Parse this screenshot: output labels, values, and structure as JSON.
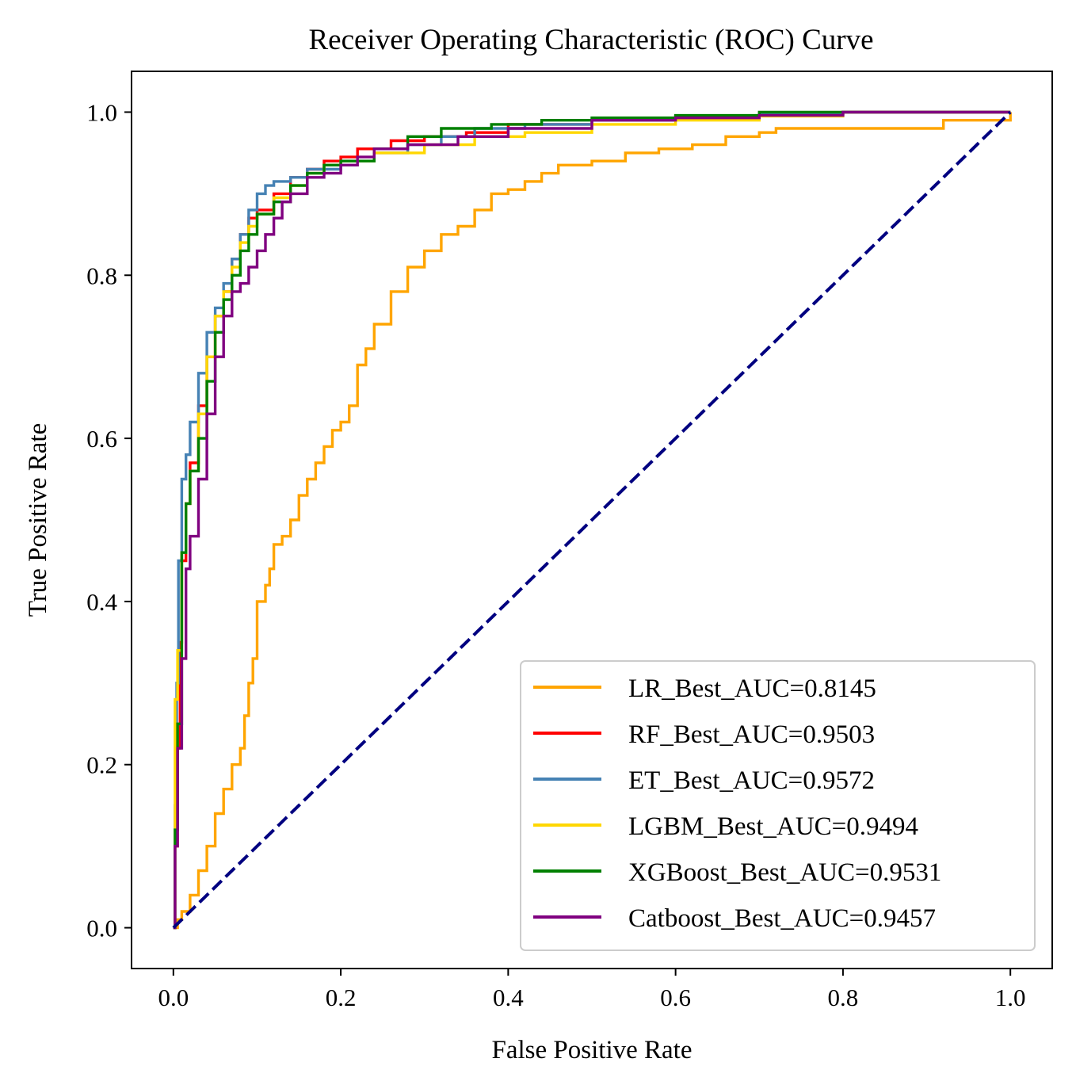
{
  "chart_data": {
    "type": "line",
    "title": "Receiver Operating Characteristic (ROC) Curve",
    "xlabel": "False Positive Rate",
    "ylabel": "True Positive Rate",
    "xlim": [
      -0.05,
      1.05
    ],
    "ylim": [
      -0.05,
      1.05
    ],
    "xticks": [
      0.0,
      0.2,
      0.4,
      0.6,
      0.8,
      1.0
    ],
    "yticks": [
      0.0,
      0.2,
      0.4,
      0.6,
      0.8,
      1.0
    ],
    "tick_labels_x": [
      "0.0",
      "0.2",
      "0.4",
      "0.6",
      "0.8",
      "1.0"
    ],
    "tick_labels_y": [
      "0.0",
      "0.2",
      "0.4",
      "0.6",
      "0.8",
      "1.0"
    ],
    "grid": false,
    "legend_position": "lower-right",
    "series": [
      {
        "name": "LR_Best_AUC=0.8145",
        "color": "#FFA500",
        "points": [
          [
            0,
            0
          ],
          [
            0.005,
            0.01
          ],
          [
            0.01,
            0.02
          ],
          [
            0.02,
            0.04
          ],
          [
            0.03,
            0.07
          ],
          [
            0.04,
            0.1
          ],
          [
            0.05,
            0.14
          ],
          [
            0.06,
            0.17
          ],
          [
            0.07,
            0.2
          ],
          [
            0.08,
            0.22
          ],
          [
            0.085,
            0.26
          ],
          [
            0.09,
            0.3
          ],
          [
            0.095,
            0.33
          ],
          [
            0.1,
            0.4
          ],
          [
            0.11,
            0.42
          ],
          [
            0.115,
            0.44
          ],
          [
            0.12,
            0.47
          ],
          [
            0.13,
            0.48
          ],
          [
            0.14,
            0.5
          ],
          [
            0.15,
            0.53
          ],
          [
            0.16,
            0.55
          ],
          [
            0.17,
            0.57
          ],
          [
            0.18,
            0.59
          ],
          [
            0.19,
            0.61
          ],
          [
            0.2,
            0.62
          ],
          [
            0.21,
            0.64
          ],
          [
            0.22,
            0.69
          ],
          [
            0.23,
            0.71
          ],
          [
            0.24,
            0.74
          ],
          [
            0.26,
            0.78
          ],
          [
            0.28,
            0.81
          ],
          [
            0.3,
            0.83
          ],
          [
            0.32,
            0.85
          ],
          [
            0.34,
            0.86
          ],
          [
            0.36,
            0.88
          ],
          [
            0.38,
            0.9
          ],
          [
            0.4,
            0.905
          ],
          [
            0.42,
            0.915
          ],
          [
            0.44,
            0.925
          ],
          [
            0.46,
            0.935
          ],
          [
            0.5,
            0.94
          ],
          [
            0.54,
            0.95
          ],
          [
            0.58,
            0.955
          ],
          [
            0.62,
            0.96
          ],
          [
            0.66,
            0.97
          ],
          [
            0.7,
            0.975
          ],
          [
            0.72,
            0.98
          ],
          [
            0.9,
            0.98
          ],
          [
            0.92,
            0.99
          ],
          [
            1.0,
            1.0
          ]
        ]
      },
      {
        "name": "RF_Best_AUC=0.9503",
        "color": "#FF0000",
        "points": [
          [
            0,
            0
          ],
          [
            0.002,
            0.1
          ],
          [
            0.005,
            0.22
          ],
          [
            0.008,
            0.35
          ],
          [
            0.01,
            0.45
          ],
          [
            0.015,
            0.52
          ],
          [
            0.02,
            0.57
          ],
          [
            0.03,
            0.64
          ],
          [
            0.04,
            0.7
          ],
          [
            0.05,
            0.75
          ],
          [
            0.06,
            0.78
          ],
          [
            0.07,
            0.82
          ],
          [
            0.08,
            0.85
          ],
          [
            0.09,
            0.87
          ],
          [
            0.1,
            0.88
          ],
          [
            0.12,
            0.9
          ],
          [
            0.14,
            0.92
          ],
          [
            0.16,
            0.93
          ],
          [
            0.18,
            0.94
          ],
          [
            0.2,
            0.945
          ],
          [
            0.22,
            0.955
          ],
          [
            0.26,
            0.965
          ],
          [
            0.3,
            0.97
          ],
          [
            0.35,
            0.975
          ],
          [
            0.4,
            0.985
          ],
          [
            0.5,
            0.99
          ],
          [
            0.6,
            0.995
          ],
          [
            0.7,
            0.998
          ],
          [
            0.8,
            1.0
          ],
          [
            1.0,
            1.0
          ]
        ]
      },
      {
        "name": "ET_Best_AUC=0.9572",
        "color": "#4682B4",
        "points": [
          [
            0,
            0
          ],
          [
            0.002,
            0.15
          ],
          [
            0.004,
            0.3
          ],
          [
            0.006,
            0.45
          ],
          [
            0.01,
            0.55
          ],
          [
            0.015,
            0.58
          ],
          [
            0.02,
            0.62
          ],
          [
            0.03,
            0.68
          ],
          [
            0.04,
            0.73
          ],
          [
            0.05,
            0.76
          ],
          [
            0.06,
            0.79
          ],
          [
            0.07,
            0.82
          ],
          [
            0.08,
            0.85
          ],
          [
            0.09,
            0.88
          ],
          [
            0.1,
            0.9
          ],
          [
            0.11,
            0.91
          ],
          [
            0.12,
            0.915
          ],
          [
            0.14,
            0.92
          ],
          [
            0.16,
            0.93
          ],
          [
            0.2,
            0.94
          ],
          [
            0.24,
            0.95
          ],
          [
            0.28,
            0.96
          ],
          [
            0.32,
            0.97
          ],
          [
            0.36,
            0.98
          ],
          [
            0.42,
            0.985
          ],
          [
            0.5,
            0.99
          ],
          [
            0.6,
            0.995
          ],
          [
            0.7,
            0.998
          ],
          [
            0.8,
            1.0
          ],
          [
            1.0,
            1.0
          ]
        ]
      },
      {
        "name": "LGBM_Best_AUC=0.9494",
        "color": "#FFD700",
        "points": [
          [
            0,
            0
          ],
          [
            0.002,
            0.28
          ],
          [
            0.005,
            0.34
          ],
          [
            0.01,
            0.46
          ],
          [
            0.015,
            0.52
          ],
          [
            0.02,
            0.56
          ],
          [
            0.03,
            0.63
          ],
          [
            0.04,
            0.7
          ],
          [
            0.05,
            0.75
          ],
          [
            0.06,
            0.78
          ],
          [
            0.07,
            0.81
          ],
          [
            0.08,
            0.84
          ],
          [
            0.09,
            0.86
          ],
          [
            0.1,
            0.875
          ],
          [
            0.12,
            0.895
          ],
          [
            0.14,
            0.91
          ],
          [
            0.16,
            0.925
          ],
          [
            0.18,
            0.935
          ],
          [
            0.2,
            0.94
          ],
          [
            0.24,
            0.95
          ],
          [
            0.3,
            0.96
          ],
          [
            0.36,
            0.97
          ],
          [
            0.42,
            0.975
          ],
          [
            0.5,
            0.985
          ],
          [
            0.6,
            0.99
          ],
          [
            0.7,
            0.995
          ],
          [
            0.8,
            1.0
          ],
          [
            1.0,
            1.0
          ]
        ]
      },
      {
        "name": "XGBoost_Best_AUC=0.9531",
        "color": "#008000",
        "points": [
          [
            0,
            0
          ],
          [
            0.002,
            0.12
          ],
          [
            0.005,
            0.25
          ],
          [
            0.01,
            0.46
          ],
          [
            0.015,
            0.52
          ],
          [
            0.02,
            0.56
          ],
          [
            0.03,
            0.6
          ],
          [
            0.04,
            0.67
          ],
          [
            0.05,
            0.73
          ],
          [
            0.06,
            0.77
          ],
          [
            0.07,
            0.8
          ],
          [
            0.08,
            0.83
          ],
          [
            0.09,
            0.85
          ],
          [
            0.1,
            0.875
          ],
          [
            0.12,
            0.89
          ],
          [
            0.14,
            0.91
          ],
          [
            0.16,
            0.925
          ],
          [
            0.18,
            0.935
          ],
          [
            0.2,
            0.94
          ],
          [
            0.24,
            0.955
          ],
          [
            0.28,
            0.97
          ],
          [
            0.32,
            0.98
          ],
          [
            0.38,
            0.985
          ],
          [
            0.44,
            0.99
          ],
          [
            0.5,
            0.993
          ],
          [
            0.6,
            0.996
          ],
          [
            0.7,
            1.0
          ],
          [
            1.0,
            1.0
          ]
        ]
      },
      {
        "name": "Catboost_Best_AUC=0.9457",
        "color": "#800080",
        "points": [
          [
            0,
            0
          ],
          [
            0.002,
            0.1
          ],
          [
            0.005,
            0.22
          ],
          [
            0.01,
            0.33
          ],
          [
            0.015,
            0.44
          ],
          [
            0.02,
            0.48
          ],
          [
            0.03,
            0.55
          ],
          [
            0.04,
            0.63
          ],
          [
            0.05,
            0.7
          ],
          [
            0.06,
            0.75
          ],
          [
            0.07,
            0.78
          ],
          [
            0.08,
            0.79
          ],
          [
            0.09,
            0.81
          ],
          [
            0.1,
            0.83
          ],
          [
            0.11,
            0.85
          ],
          [
            0.12,
            0.87
          ],
          [
            0.13,
            0.89
          ],
          [
            0.14,
            0.9
          ],
          [
            0.16,
            0.92
          ],
          [
            0.18,
            0.925
          ],
          [
            0.2,
            0.935
          ],
          [
            0.22,
            0.945
          ],
          [
            0.24,
            0.955
          ],
          [
            0.28,
            0.96
          ],
          [
            0.34,
            0.97
          ],
          [
            0.4,
            0.98
          ],
          [
            0.5,
            0.99
          ],
          [
            0.6,
            0.993
          ],
          [
            0.7,
            0.996
          ],
          [
            0.8,
            1.0
          ],
          [
            1.0,
            1.0
          ]
        ]
      }
    ],
    "diagonal": {
      "color": "#000080",
      "points": [
        [
          0,
          0
        ],
        [
          1,
          1
        ]
      ]
    }
  }
}
